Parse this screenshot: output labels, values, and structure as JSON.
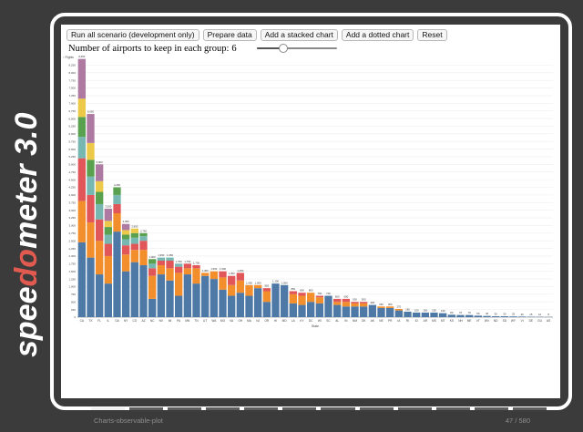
{
  "brand": {
    "text_before": "spee",
    "text_accent": "do",
    "text_after": "meter 3.0",
    "text_color": "#ffffff",
    "accent_color": "#e05a4f",
    "gauge_icon": "speedometer-gauge-icon"
  },
  "toolbar": {
    "buttons": [
      "Run all scenario (development only)",
      "Prepare data",
      "Add a stacked chart",
      "Add a dotted chart",
      "Reset"
    ]
  },
  "control": {
    "label": "Number of airports to keep in each group:",
    "value": "6",
    "slider_fraction": 0.33
  },
  "chart_data": {
    "type": "bar",
    "stacked": true,
    "xlabel": "State",
    "ylabel": "",
    "y_axis_visible_label": "↑ Flights",
    "grid": true,
    "colors": [
      "#4e79a7",
      "#f28e2c",
      "#e15759",
      "#76b7b2",
      "#59a14f",
      "#edc949",
      "#af7aa1"
    ],
    "categories": [
      "CA",
      "TX",
      "FL",
      "IL",
      "GA",
      "NY",
      "CO",
      "AZ",
      "NC",
      "NV",
      "MI",
      "PA",
      "MN",
      "TN",
      "UT",
      "WA",
      "MO",
      "VA",
      "OH",
      "MA",
      "NJ",
      "OR",
      "HI",
      "MD",
      "LA",
      "KY",
      "DC",
      "WI",
      "SC",
      "AL",
      "IN",
      "NM",
      "OK",
      "AK",
      "NE",
      "PR",
      "IA",
      "RI",
      "ID",
      "AR",
      "MS",
      "MT",
      "KS",
      "NH",
      "ME",
      "VT",
      "WV",
      "ND",
      "SD",
      "WY",
      "VI",
      "DE",
      "GU",
      "AS"
    ],
    "series": [
      {
        "values": [
          2450,
          1950,
          1400,
          1100,
          2800,
          1500,
          1800,
          1700,
          600,
          1400,
          1200,
          700,
          1400,
          1100,
          1350,
          1250,
          900,
          700,
          800,
          700,
          950,
          500,
          1100,
          1050,
          450,
          400,
          500,
          450,
          700,
          400,
          350,
          350,
          350,
          400,
          300,
          300,
          220,
          180,
          150,
          150,
          150,
          130,
          80,
          70,
          70,
          50,
          40,
          30,
          30,
          25,
          20,
          15,
          12,
          8
        ]
      },
      {
        "values": [
          1350,
          1150,
          1100,
          900,
          600,
          550,
          400,
          500,
          750,
          300,
          400,
          750,
          200,
          500,
          100,
          250,
          400,
          350,
          400,
          350,
          100,
          350,
          0,
          0,
          300,
          300,
          300,
          200,
          0,
          100,
          150,
          100,
          100,
          0,
          50,
          50,
          50,
          0,
          0,
          0,
          0,
          0,
          0,
          0,
          0,
          0,
          0,
          0,
          0,
          0,
          0,
          0,
          0,
          0
        ]
      },
      {
        "values": [
          1400,
          900,
          700,
          400,
          300,
          300,
          200,
          300,
          250,
          150,
          250,
          200,
          150,
          100,
          0,
          0,
          200,
          300,
          250,
          0,
          0,
          100,
          0,
          0,
          100,
          100,
          0,
          50,
          0,
          100,
          100,
          50,
          50,
          0,
          0,
          0,
          0,
          0,
          0,
          0,
          0,
          0,
          0,
          0,
          0,
          0,
          0,
          0,
          0,
          0,
          0,
          0,
          0,
          0
        ]
      },
      {
        "values": [
          700,
          600,
          500,
          300,
          300,
          200,
          200,
          150,
          150,
          100,
          100,
          100,
          0,
          0,
          0,
          0,
          0,
          0,
          0,
          0,
          0,
          0,
          0,
          0,
          0,
          0,
          0,
          0,
          0,
          0,
          0,
          0,
          0,
          0,
          0,
          0,
          0,
          0,
          0,
          0,
          0,
          0,
          0,
          0,
          0,
          0,
          0,
          0,
          0,
          0,
          0,
          0,
          0,
          0
        ]
      },
      {
        "values": [
          650,
          550,
          400,
          250,
          250,
          150,
          150,
          100,
          150,
          0,
          0,
          0,
          0,
          0,
          0,
          0,
          0,
          0,
          0,
          0,
          0,
          0,
          0,
          0,
          0,
          0,
          0,
          0,
          0,
          0,
          0,
          0,
          0,
          0,
          0,
          0,
          0,
          0,
          0,
          0,
          0,
          0,
          0,
          0,
          0,
          0,
          0,
          0,
          0,
          0,
          0,
          0,
          0,
          0
        ]
      },
      {
        "values": [
          600,
          550,
          350,
          200,
          0,
          150,
          150,
          0,
          0,
          0,
          0,
          0,
          0,
          0,
          0,
          0,
          0,
          0,
          0,
          0,
          0,
          0,
          0,
          0,
          0,
          0,
          0,
          0,
          0,
          0,
          0,
          0,
          0,
          0,
          0,
          0,
          0,
          0,
          0,
          0,
          0,
          0,
          0,
          0,
          0,
          0,
          0,
          0,
          0,
          0,
          0,
          0,
          0,
          0
        ]
      },
      {
        "values": [
          1300,
          950,
          550,
          400,
          0,
          200,
          0,
          0,
          0,
          0,
          0,
          0,
          0,
          0,
          0,
          0,
          0,
          0,
          0,
          0,
          0,
          0,
          0,
          0,
          0,
          0,
          0,
          0,
          0,
          0,
          0,
          0,
          0,
          0,
          0,
          0,
          0,
          0,
          0,
          0,
          0,
          0,
          0,
          0,
          0,
          0,
          0,
          0,
          0,
          0,
          0,
          0,
          0,
          0
        ]
      }
    ],
    "ylim": [
      0,
      8500
    ],
    "y_ticks": [
      0,
      250,
      500,
      750,
      1000,
      1250,
      1500,
      1750,
      2000,
      2250,
      2500,
      2750,
      3000,
      3250,
      3500,
      3750,
      4000,
      4250,
      4500,
      4750,
      5000,
      5250,
      5500,
      5750,
      6000,
      6250,
      6500,
      6750,
      7000,
      7250,
      7500,
      7750,
      8000,
      8250
    ],
    "y_tick_labels": [
      "0",
      "250",
      "500",
      "750",
      "1,000",
      "1,250",
      "1,500",
      "1,750",
      "2,000",
      "2,250",
      "2,500",
      "2,750",
      "3,000",
      "3,250",
      "3,500",
      "3,750",
      "4,000",
      "4,250",
      "4,500",
      "4,750",
      "5,000",
      "5,250",
      "5,500",
      "5,750",
      "6,000",
      "6,250",
      "6,500",
      "6,750",
      "7,000",
      "7,250",
      "7,500",
      "7,750",
      "8,000",
      "8,250"
    ]
  },
  "footer": {
    "suite_name": "Charts-observable-plot",
    "counter": "47 / 580",
    "progress_segments": 12,
    "active_segment": 0
  }
}
